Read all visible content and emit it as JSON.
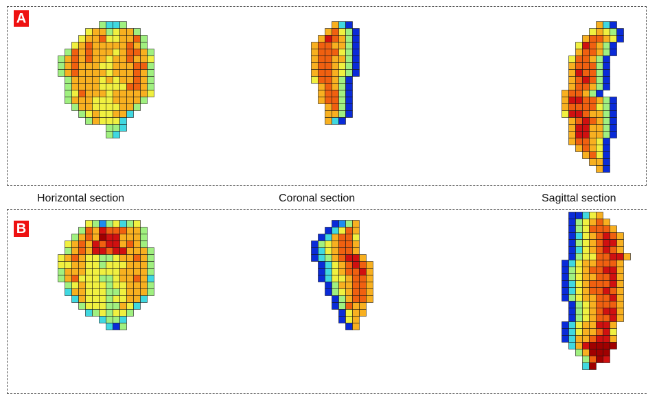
{
  "panels": [
    {
      "id": "A",
      "label": "A"
    },
    {
      "id": "B",
      "label": "B"
    }
  ],
  "section_labels": {
    "horizontal": "Horizontal section",
    "coronal": "Coronal section",
    "sagittal": "Sagittal section"
  },
  "colormap": [
    "#0a2bd8",
    "#1e8cf0",
    "#40d8e0",
    "#a0f080",
    "#f0f040",
    "#f8b020",
    "#f06010",
    "#d01010",
    "#a00000"
  ]
}
